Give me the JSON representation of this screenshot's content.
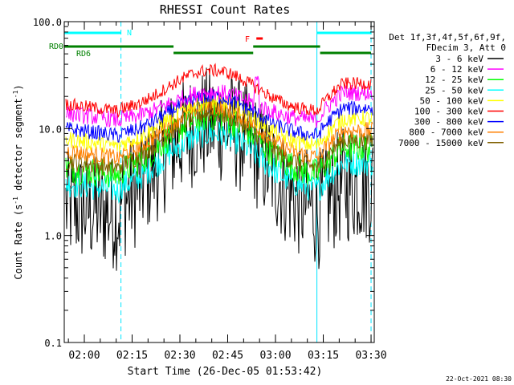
{
  "chart_data": {
    "type": "line",
    "title": "RHESSI Count Rates",
    "xlabel": "Start Time (26-Dec-05 01:53:42)",
    "ylabel_main": "Count Rate (s",
    "ylabel_sup1": "-1",
    "ylabel_mid": " detector segment",
    "ylabel_sup2": "-1",
    "ylabel_end": ")",
    "y_scale": "log",
    "ylim": [
      0.1,
      100
    ],
    "x_range_minutes": [
      "01:53:42",
      "03:31:00"
    ],
    "x_ticks": [
      "02:00",
      "02:15",
      "02:30",
      "02:45",
      "03:00",
      "03:15",
      "03:30"
    ],
    "y_ticks": [
      "100.0",
      "10.0",
      "1.0",
      "0.1"
    ],
    "timestamp": "22-Oct-2021 08:30",
    "legend_header": [
      "Det 1f,3f,4f,5f,6f,9f,",
      "FDecim 3, Att 0"
    ],
    "series": [
      {
        "name": "3 - 6 keV",
        "color": "#000000",
        "base": 1.9,
        "peak": 11
      },
      {
        "name": "6 - 12 keV",
        "color": "#ff00ff",
        "base": 14,
        "peak": 22
      },
      {
        "name": "12 - 25 keV",
        "color": "#00ff00",
        "base": 4.3,
        "peak": 13
      },
      {
        "name": "25 - 50 keV",
        "color": "#00ffff",
        "base": 3.1,
        "peak": 9
      },
      {
        "name": "50 - 100 keV",
        "color": "#ffff00",
        "base": 8,
        "peak": 18
      },
      {
        "name": "100 - 300 keV",
        "color": "#ff0000",
        "base": 17,
        "peak": 35
      },
      {
        "name": "300 - 800 keV",
        "color": "#0000ff",
        "base": 10,
        "peak": 20
      },
      {
        "name": "800 - 7000 keV",
        "color": "#ff8000",
        "base": 6.2,
        "peak": 16
      },
      {
        "name": "7000 - 15000 keV",
        "color": "#806000",
        "base": 5,
        "peak": 14
      }
    ],
    "flags": [
      {
        "label": "N",
        "color": "#00ffff"
      },
      {
        "label": "F",
        "color": "#ff0000"
      },
      {
        "label": "RD0",
        "color": "#008000"
      },
      {
        "label": "RD6",
        "color": "#008000"
      }
    ],
    "flag_times": {
      "N_bars": [
        [
          "01:53:42",
          "02:11:30"
        ],
        [
          "03:13:00",
          "03:30:00"
        ]
      ],
      "F_bar": [
        "02:54:00",
        "02:56:00"
      ],
      "RD_upper": [
        [
          "01:53:42",
          "02:28:00"
        ],
        [
          "02:53:00",
          "03:14:00"
        ]
      ],
      "RD_lower": [
        [
          "02:28:00",
          "02:53:00"
        ],
        [
          "03:14:00",
          "03:30:00"
        ]
      ],
      "cyan_dashed": [
        "02:11:30",
        "03:30:00"
      ],
      "cyan_solid": [
        "01:53:42",
        "03:13:00"
      ]
    },
    "grid": false,
    "legend_position": "right"
  }
}
